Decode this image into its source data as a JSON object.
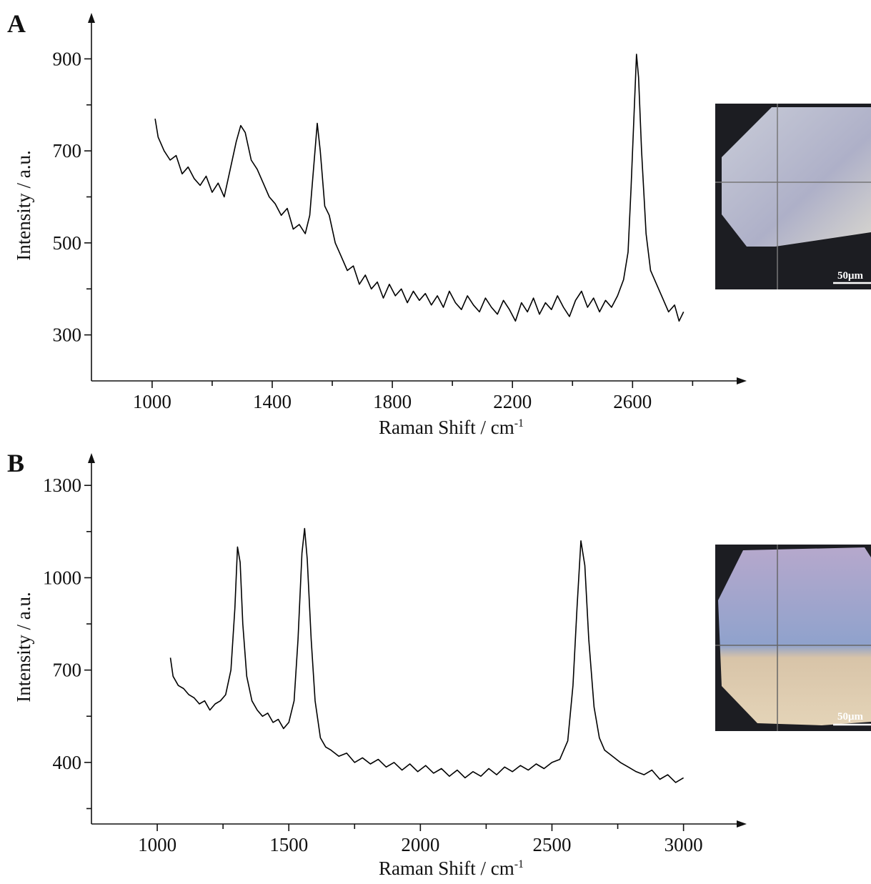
{
  "chart_data": [
    {
      "type": "line",
      "panel": "A",
      "x_label": "Raman Shift / cm",
      "x_label_sup": "-1",
      "y_label": "Intensity / a.u.",
      "inset_label": "50μm",
      "xlim": [
        798,
        2980
      ],
      "ylim": [
        200,
        1000
      ],
      "xticks": [
        1000,
        1400,
        1800,
        2200,
        2600
      ],
      "xminorticks": [
        1200,
        1600,
        2000,
        2400,
        2800
      ],
      "yticks": [
        300,
        500,
        700,
        900
      ],
      "yminorticks": [
        400,
        600,
        800
      ],
      "series": [
        {
          "color": "#000000",
          "x": [
            1010,
            1020,
            1040,
            1060,
            1080,
            1100,
            1120,
            1140,
            1160,
            1180,
            1200,
            1220,
            1240,
            1260,
            1280,
            1295,
            1310,
            1330,
            1350,
            1370,
            1390,
            1410,
            1430,
            1450,
            1470,
            1490,
            1510,
            1525,
            1540,
            1550,
            1560,
            1575,
            1590,
            1610,
            1630,
            1650,
            1670,
            1690,
            1710,
            1730,
            1750,
            1770,
            1790,
            1810,
            1830,
            1850,
            1870,
            1890,
            1910,
            1930,
            1950,
            1970,
            1990,
            2010,
            2030,
            2050,
            2070,
            2090,
            2110,
            2130,
            2150,
            2170,
            2190,
            2210,
            2230,
            2250,
            2270,
            2290,
            2310,
            2330,
            2350,
            2370,
            2390,
            2410,
            2430,
            2450,
            2470,
            2490,
            2510,
            2530,
            2550,
            2570,
            2585,
            2595,
            2605,
            2613,
            2620,
            2630,
            2645,
            2660,
            2680,
            2700,
            2720,
            2740,
            2755,
            2770
          ],
          "values": [
            770,
            730,
            700,
            680,
            690,
            650,
            665,
            640,
            625,
            645,
            610,
            630,
            600,
            660,
            720,
            755,
            740,
            680,
            660,
            630,
            600,
            585,
            560,
            575,
            530,
            540,
            520,
            560,
            680,
            760,
            700,
            580,
            560,
            500,
            470,
            440,
            450,
            410,
            430,
            400,
            415,
            380,
            410,
            385,
            400,
            370,
            395,
            375,
            390,
            365,
            385,
            360,
            395,
            370,
            355,
            385,
            365,
            350,
            380,
            360,
            345,
            375,
            355,
            330,
            370,
            350,
            380,
            345,
            370,
            355,
            385,
            360,
            340,
            375,
            395,
            360,
            380,
            350,
            375,
            360,
            385,
            420,
            480,
            620,
            780,
            910,
            860,
            700,
            520,
            440,
            410,
            380,
            350,
            365,
            330,
            350
          ]
        }
      ]
    },
    {
      "type": "line",
      "panel": "B",
      "x_label": "Raman Shift / cm",
      "x_label_sup": "-1",
      "y_label": "Intensity / a.u.",
      "inset_label": "50μm",
      "xlim": [
        750,
        3240
      ],
      "ylim": [
        200,
        1405
      ],
      "xticks": [
        1000,
        1500,
        2000,
        2500,
        3000
      ],
      "xminorticks": [
        1250,
        1750,
        2250,
        2750
      ],
      "yticks": [
        400,
        700,
        1000,
        1300
      ],
      "yminorticks": [
        250,
        550,
        850,
        1150
      ],
      "series": [
        {
          "color": "#000000",
          "x": [
            1050,
            1060,
            1080,
            1100,
            1120,
            1140,
            1160,
            1180,
            1200,
            1220,
            1240,
            1260,
            1280,
            1295,
            1305,
            1315,
            1325,
            1340,
            1360,
            1380,
            1400,
            1420,
            1440,
            1460,
            1480,
            1500,
            1520,
            1535,
            1550,
            1560,
            1570,
            1585,
            1600,
            1620,
            1640,
            1660,
            1690,
            1720,
            1750,
            1780,
            1810,
            1840,
            1870,
            1900,
            1930,
            1960,
            1990,
            2020,
            2050,
            2080,
            2110,
            2140,
            2170,
            2200,
            2230,
            2260,
            2290,
            2320,
            2350,
            2380,
            2410,
            2440,
            2470,
            2500,
            2530,
            2560,
            2580,
            2595,
            2610,
            2625,
            2640,
            2660,
            2680,
            2700,
            2730,
            2760,
            2790,
            2820,
            2850,
            2880,
            2910,
            2940,
            2970,
            3000
          ],
          "values": [
            740,
            680,
            650,
            640,
            620,
            610,
            590,
            600,
            570,
            590,
            600,
            620,
            700,
            900,
            1100,
            1050,
            850,
            680,
            600,
            570,
            550,
            560,
            530,
            540,
            510,
            530,
            600,
            800,
            1080,
            1160,
            1060,
            800,
            600,
            480,
            450,
            440,
            420,
            430,
            400,
            415,
            395,
            410,
            385,
            400,
            375,
            395,
            370,
            390,
            365,
            380,
            355,
            375,
            350,
            370,
            355,
            380,
            360,
            385,
            370,
            390,
            375,
            395,
            380,
            400,
            410,
            470,
            650,
            900,
            1120,
            1040,
            800,
            580,
            480,
            440,
            420,
            400,
            385,
            370,
            360,
            375,
            345,
            360,
            335,
            350
          ]
        }
      ]
    }
  ]
}
